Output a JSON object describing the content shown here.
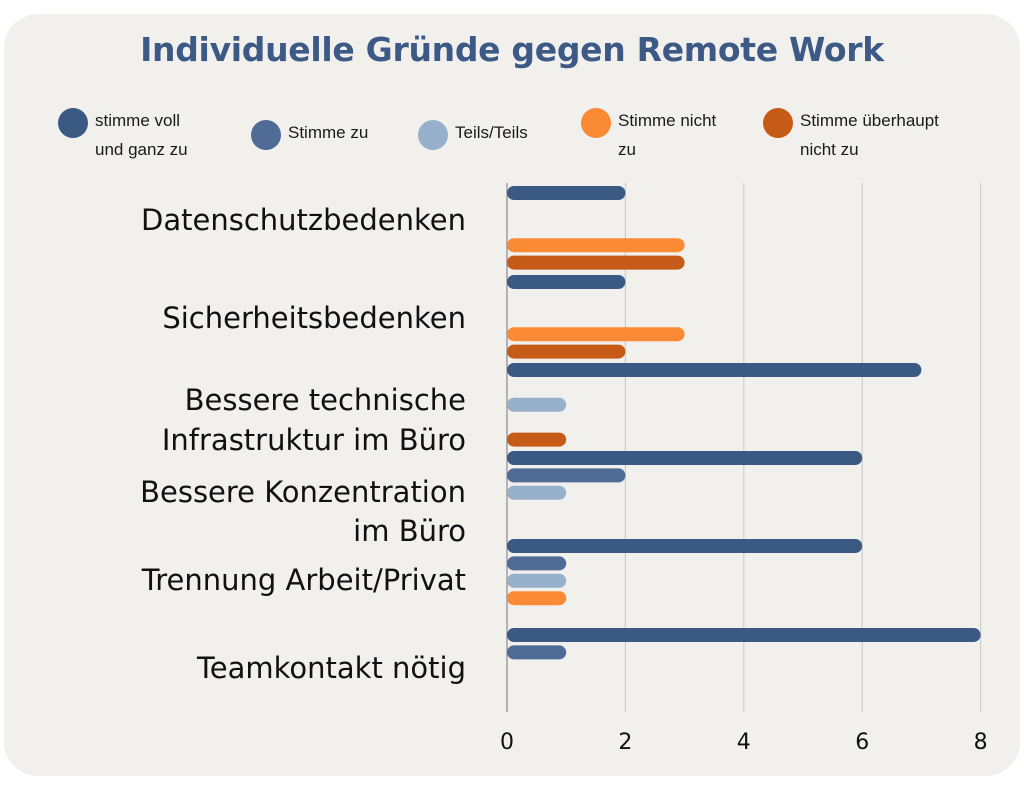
{
  "chart_data": {
    "type": "bar",
    "orientation": "horizontal",
    "title": "Individuelle Gründe gegen Remote Work",
    "categories": [
      "Datenschutzbedenken",
      "Sicherheitsbedenken",
      "Bessere technische Infrastruktur im Büro",
      "Bessere Konzentration im Büro",
      "Trennung Arbeit/Privat",
      "Teamkontakt nötig"
    ],
    "category_lines": [
      [
        "Datenschutzbedenken"
      ],
      [
        "Sicherheitsbedenken"
      ],
      [
        "Bessere technische",
        "Infrastruktur im Büro"
      ],
      [
        "Bessere Konzentration",
        "im Büro"
      ],
      [
        "Trennung Arbeit/Privat"
      ],
      [
        "Teamkontakt nötig"
      ]
    ],
    "series": [
      {
        "name": "stimme voll und ganz zu",
        "legend_lines": "stimme voll\nund ganz zu",
        "color": "#3a5a84",
        "values": [
          2,
          2,
          7,
          6,
          6,
          8
        ]
      },
      {
        "name": "Stimme zu",
        "legend_lines": "Stimme zu",
        "color": "#4f6b96",
        "values": [
          0,
          0,
          0,
          2,
          1,
          1
        ]
      },
      {
        "name": "Teils/Teils",
        "legend_lines": "Teils/Teils",
        "color": "#97b0cc",
        "values": [
          0,
          0,
          1,
          1,
          1,
          0
        ]
      },
      {
        "name": "Stimme nicht zu",
        "legend_lines": "Stimme nicht\nzu",
        "color": "#fb8a35",
        "values": [
          3,
          3,
          0,
          0,
          1,
          0
        ]
      },
      {
        "name": "Stimme überhaupt nicht zu",
        "legend_lines": "Stimme überhaupt\nnicht zu",
        "color": "#c65a17",
        "values": [
          3,
          2,
          1,
          0,
          0,
          0
        ]
      }
    ],
    "xlim": [
      0,
      8
    ],
    "xticks": [
      0,
      2,
      4,
      6,
      8
    ],
    "grid": true,
    "legend_position": "top"
  }
}
